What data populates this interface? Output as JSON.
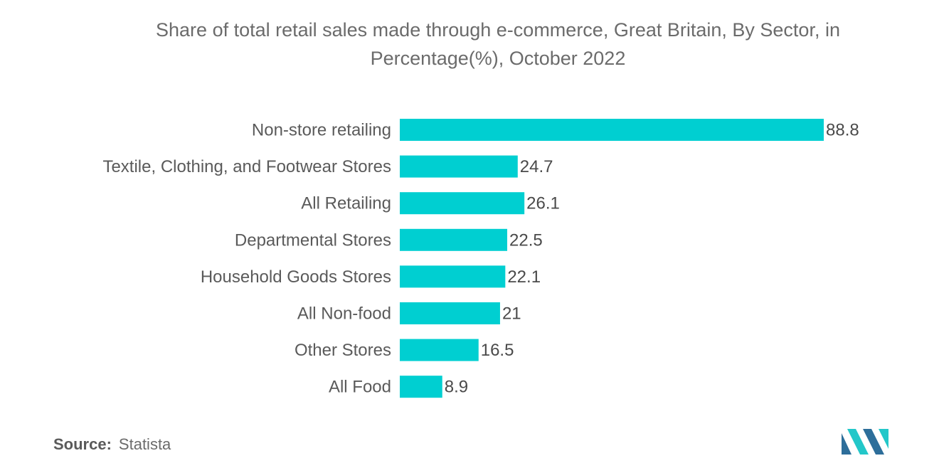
{
  "title_line1": "Share of total retail sales made through e-commerce, Great Britain, By Sector, in",
  "title_line2": "Percentage(%), October 2022",
  "source_label": "Source:",
  "source_value": "Statista",
  "colors": {
    "bar": "#00cfd1",
    "logo_dark": "#2d6e9a",
    "logo_light": "#23c7c9"
  },
  "chart_data": {
    "type": "bar",
    "orientation": "horizontal",
    "title": "Share of total retail sales made through e-commerce, Great Britain, By Sector, in Percentage(%), October 2022",
    "categories": [
      "Non-store retailing",
      "Textile, Clothing, and Footwear Stores",
      "All Retailing",
      "Departmental Stores",
      "Household Goods Stores",
      "All Non-food",
      "Other Stores",
      "All Food"
    ],
    "values": [
      88.8,
      24.7,
      26.1,
      22.5,
      22.1,
      21,
      16.5,
      8.9
    ],
    "value_labels": [
      "88.8",
      "24.7",
      "26.1",
      "22.5",
      "22.1",
      "21",
      "16.5",
      "8.9"
    ],
    "xlim": [
      0,
      88.8
    ],
    "grid": false,
    "legend": "none"
  }
}
